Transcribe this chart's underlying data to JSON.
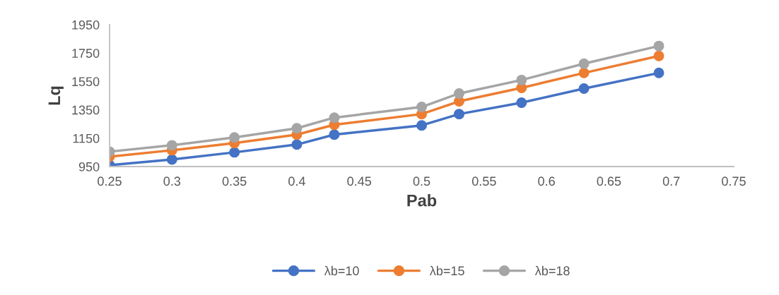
{
  "chart_data": {
    "type": "line",
    "xlabel": "Pab",
    "ylabel": "Lq",
    "x": [
      0.25,
      0.3,
      0.35,
      0.4,
      0.43,
      0.5,
      0.53,
      0.58,
      0.63,
      0.69
    ],
    "series": [
      {
        "name": "λb=10",
        "color": "#4472c4",
        "values": [
          960,
          1000,
          1050,
          1105,
          1175,
          1240,
          1320,
          1400,
          1500,
          1610
        ]
      },
      {
        "name": "λb=15",
        "color": "#ed7d31",
        "values": [
          1020,
          1065,
          1115,
          1175,
          1245,
          1320,
          1410,
          1505,
          1610,
          1730
        ]
      },
      {
        "name": "λb=18",
        "color": "#a5a5a5",
        "values": [
          1055,
          1100,
          1155,
          1220,
          1295,
          1370,
          1465,
          1560,
          1675,
          1800
        ]
      }
    ],
    "xlim": [
      0.25,
      0.75
    ],
    "xticks": [
      0.25,
      0.3,
      0.35,
      0.4,
      0.45,
      0.5,
      0.55,
      0.6,
      0.65,
      0.7,
      0.75
    ],
    "ylim": [
      950,
      1950
    ],
    "yticks": [
      950,
      1150,
      1350,
      1550,
      1750,
      1950
    ],
    "grid": false,
    "legend": "bottom",
    "marker": "circle",
    "line_style": "solid"
  }
}
